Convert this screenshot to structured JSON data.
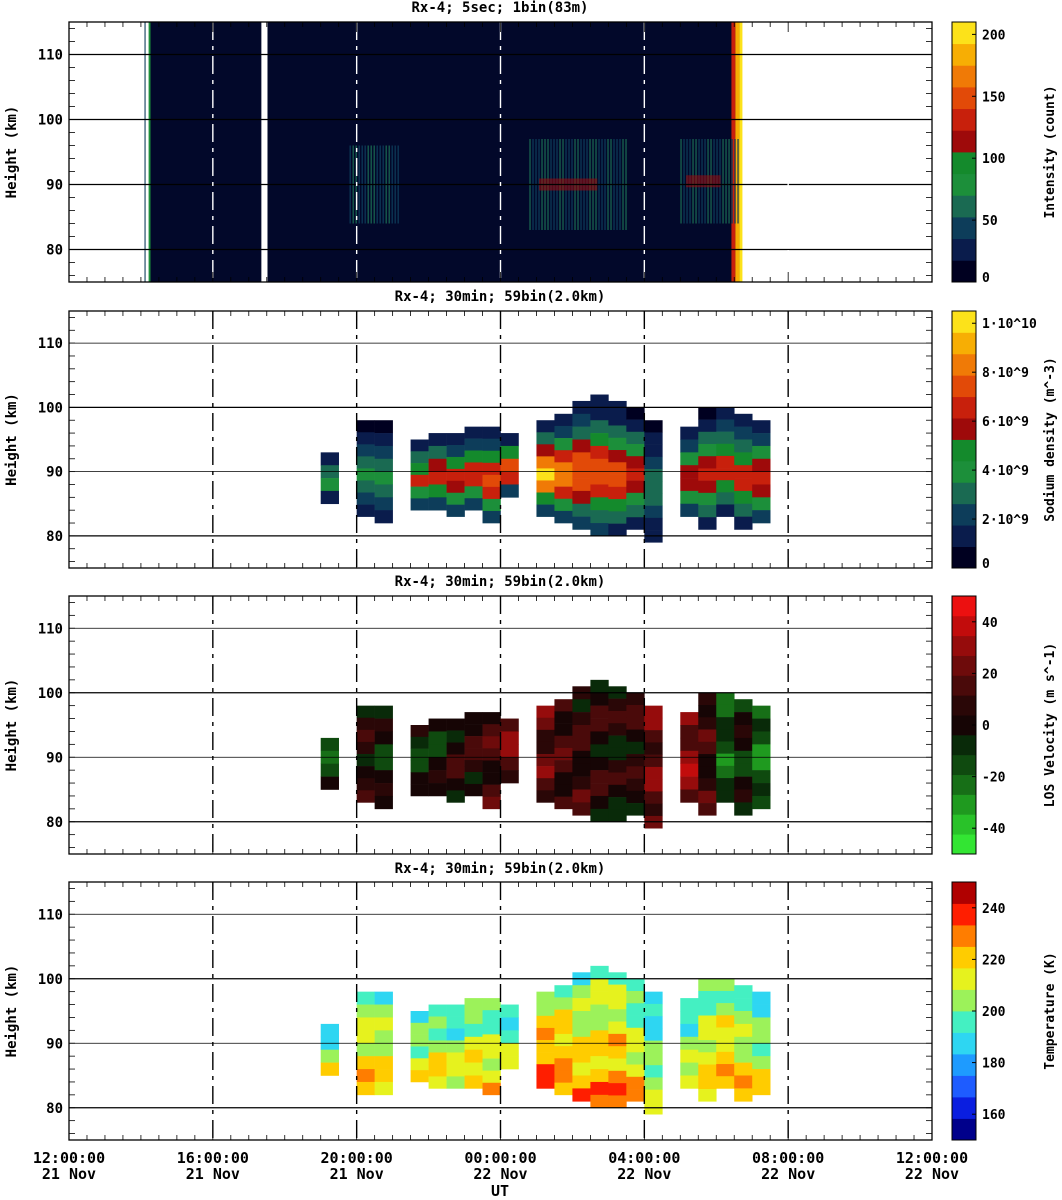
{
  "figure": {
    "x_axis_label": "UT",
    "x_ticks": [
      {
        "time": "12:00:00",
        "date": "21 Nov"
      },
      {
        "time": "16:00:00",
        "date": "21 Nov"
      },
      {
        "time": "20:00:00",
        "date": "21 Nov"
      },
      {
        "time": "00:00:00",
        "date": "22 Nov"
      },
      {
        "time": "04:00:00",
        "date": "22 Nov"
      },
      {
        "time": "08:00:00",
        "date": "22 Nov"
      },
      {
        "time": "12:00:00",
        "date": "22 Nov"
      }
    ],
    "y_ticks": [
      "80",
      "90",
      "100",
      "110"
    ]
  },
  "chart_data": [
    {
      "type": "heatmap",
      "title": "Rx-4;  5sec; 1bin(83m)",
      "xlabel": "",
      "ylabel": "Height (km)",
      "xlim_hours_since_21Nov_12UT": [
        0,
        24
      ],
      "ylim_km": [
        75,
        115
      ],
      "colorbar": {
        "label": "Intensity (count)",
        "ticks": [
          "200",
          "150",
          "100",
          "50",
          "0"
        ],
        "tick_values": [
          200,
          150,
          100,
          50,
          0
        ],
        "range": [
          0,
          210
        ],
        "colors": [
          "#000020",
          "#0a1c4c",
          "#0d3d5a",
          "#1a6a52",
          "#1c8f3a",
          "#148a2c",
          "#9e0a0a",
          "#c8200c",
          "#e24a08",
          "#f07a06",
          "#f7ae04",
          "#fce21a"
        ]
      },
      "data_gaps_hours": [
        [
          2.13,
          2.17
        ],
        [
          5.35,
          5.52
        ]
      ],
      "data_extent_hours": [
        2.1,
        18.7
      ],
      "features": [
        {
          "hours": [
            7.8,
            9.2
          ],
          "height_km": [
            84,
            96
          ],
          "level": "medium"
        },
        {
          "hours": [
            12.8,
            15.5
          ],
          "height_km": [
            83,
            97
          ],
          "level": "high"
        },
        {
          "hours": [
            17.0,
            18.6
          ],
          "height_km": [
            84,
            97
          ],
          "level": "high"
        }
      ]
    },
    {
      "type": "heatmap",
      "title": "Rx-4; 30min; 59bin(2.0km)",
      "ylabel": "Height (km)",
      "ylim_km": [
        75,
        115
      ],
      "colorbar": {
        "label": "Sodium density (m^-3)",
        "ticks": [
          "1·10^10",
          "8·10^9",
          "6·10^9",
          "4·10^9",
          "2·10^9",
          "0"
        ],
        "tick_values": [
          10000000000.0,
          8000000000.0,
          6000000000.0,
          4000000000.0,
          2000000000.0,
          0
        ],
        "range": [
          0,
          10500000000.0
        ],
        "colors": [
          "#000020",
          "#0a1c4c",
          "#0d3d5a",
          "#1a6a52",
          "#1c8f3a",
          "#148a2c",
          "#9e0a0a",
          "#c8200c",
          "#e24a08",
          "#f07a06",
          "#f7ae04",
          "#fce21a"
        ]
      },
      "columns": [
        {
          "hours": [
            7.0,
            7.5
          ],
          "height_km": [
            85,
            93
          ],
          "level": 0.33
        },
        {
          "hours": [
            8.0,
            8.5
          ],
          "height_km": [
            83,
            98
          ],
          "level": 0.3
        },
        {
          "hours": [
            8.5,
            9.0
          ],
          "height_km": [
            82,
            98
          ],
          "level": 0.3
        },
        {
          "hours": [
            9.5,
            10.0
          ],
          "height_km": [
            84,
            95
          ],
          "level": 0.55
        },
        {
          "hours": [
            10.0,
            10.5
          ],
          "height_km": [
            84,
            96
          ],
          "level": 0.62
        },
        {
          "hours": [
            10.5,
            11.0
          ],
          "height_km": [
            83,
            96
          ],
          "level": 0.58
        },
        {
          "hours": [
            11.0,
            11.5
          ],
          "height_km": [
            84,
            97
          ],
          "level": 0.6
        },
        {
          "hours": [
            11.5,
            12.0
          ],
          "height_km": [
            82,
            97
          ],
          "level": 0.7
        },
        {
          "hours": [
            12.0,
            12.5
          ],
          "height_km": [
            86,
            96
          ],
          "level": 0.72
        },
        {
          "hours": [
            13.0,
            13.5
          ],
          "height_km": [
            83,
            98
          ],
          "level": 0.9
        },
        {
          "hours": [
            13.5,
            14.0
          ],
          "height_km": [
            82,
            99
          ],
          "level": 0.75
        },
        {
          "hours": [
            14.0,
            14.5
          ],
          "height_km": [
            81,
            101
          ],
          "level": 0.7
        },
        {
          "hours": [
            14.5,
            15.0
          ],
          "height_km": [
            80,
            102
          ],
          "level": 0.7
        },
        {
          "hours": [
            15.0,
            15.5
          ],
          "height_km": [
            80,
            101
          ],
          "level": 0.65
        },
        {
          "hours": [
            15.5,
            16.0
          ],
          "height_km": [
            81,
            100
          ],
          "level": 0.55
        },
        {
          "hours": [
            16.0,
            16.5
          ],
          "height_km": [
            79,
            98
          ],
          "level": 0.25
        },
        {
          "hours": [
            17.0,
            17.5
          ],
          "height_km": [
            83,
            97
          ],
          "level": 0.55
        },
        {
          "hours": [
            17.5,
            18.0
          ],
          "height_km": [
            81,
            100
          ],
          "level": 0.55
        },
        {
          "hours": [
            18.0,
            18.5
          ],
          "height_km": [
            83,
            100
          ],
          "level": 0.6
        },
        {
          "hours": [
            18.5,
            19.0
          ],
          "height_km": [
            81,
            99
          ],
          "level": 0.6
        },
        {
          "hours": [
            19.0,
            19.5
          ],
          "height_km": [
            82,
            98
          ],
          "level": 0.6
        }
      ]
    },
    {
      "type": "heatmap",
      "title": "Rx-4; 30min; 59bin(2.0km)",
      "ylabel": "Height (km)",
      "ylim_km": [
        75,
        115
      ],
      "colorbar": {
        "label": "LOS Velocity (m s^-1)",
        "ticks": [
          "40",
          "20",
          "0",
          "-20",
          "-40"
        ],
        "tick_values": [
          40,
          20,
          0,
          -20,
          -40
        ],
        "range": [
          -50,
          50
        ],
        "colors": [
          "#33e533",
          "#29c229",
          "#1f9a1f",
          "#176f17",
          "#0f4a0f",
          "#092a09",
          "#160505",
          "#2a0707",
          "#4a0a0a",
          "#6e0b0b",
          "#960c0c",
          "#c20c0c",
          "#ec1010"
        ]
      },
      "columns": [
        {
          "hours": [
            7.0,
            7.5
          ],
          "height_km": [
            85,
            93
          ],
          "value": -10
        },
        {
          "hours": [
            8.0,
            8.5
          ],
          "height_km": [
            83,
            98
          ],
          "value": 5
        },
        {
          "hours": [
            8.5,
            9.0
          ],
          "height_km": [
            82,
            98
          ],
          "value": -5
        },
        {
          "hours": [
            9.5,
            10.0
          ],
          "height_km": [
            84,
            95
          ],
          "value": -8
        },
        {
          "hours": [
            10.0,
            10.5
          ],
          "height_km": [
            84,
            96
          ],
          "value": -6
        },
        {
          "hours": [
            10.5,
            11.0
          ],
          "height_km": [
            83,
            96
          ],
          "value": 5
        },
        {
          "hours": [
            11.0,
            11.5
          ],
          "height_km": [
            84,
            97
          ],
          "value": 8
        },
        {
          "hours": [
            11.5,
            12.0
          ],
          "height_km": [
            82,
            97
          ],
          "value": 10
        },
        {
          "hours": [
            12.0,
            12.5
          ],
          "height_km": [
            86,
            96
          ],
          "value": 20
        },
        {
          "hours": [
            13.0,
            13.5
          ],
          "height_km": [
            83,
            98
          ],
          "value": 18
        },
        {
          "hours": [
            13.5,
            14.0
          ],
          "height_km": [
            82,
            99
          ],
          "value": 10
        },
        {
          "hours": [
            14.0,
            14.5
          ],
          "height_km": [
            81,
            101
          ],
          "value": 8
        },
        {
          "hours": [
            14.5,
            15.0
          ],
          "height_km": [
            80,
            102
          ],
          "value": 5
        },
        {
          "hours": [
            15.0,
            15.5
          ],
          "height_km": [
            80,
            101
          ],
          "value": 2
        },
        {
          "hours": [
            15.5,
            16.0
          ],
          "height_km": [
            81,
            100
          ],
          "value": 6
        },
        {
          "hours": [
            16.0,
            16.5
          ],
          "height_km": [
            79,
            98
          ],
          "value": 22
        },
        {
          "hours": [
            17.0,
            17.5
          ],
          "height_km": [
            83,
            97
          ],
          "value": 25
        },
        {
          "hours": [
            17.5,
            18.0
          ],
          "height_km": [
            81,
            100
          ],
          "value": 10
        },
        {
          "hours": [
            18.0,
            18.5
          ],
          "height_km": [
            83,
            100
          ],
          "value": -15
        },
        {
          "hours": [
            18.5,
            19.0
          ],
          "height_km": [
            81,
            99
          ],
          "value": -5
        },
        {
          "hours": [
            19.0,
            19.5
          ],
          "height_km": [
            82,
            98
          ],
          "value": -20
        }
      ]
    },
    {
      "type": "heatmap",
      "title": "Rx-4; 30min; 59bin(2.0km)",
      "xlabel": "UT",
      "ylabel": "Height (km)",
      "ylim_km": [
        75,
        115
      ],
      "colorbar": {
        "label": "Temperature (K)",
        "ticks": [
          "240",
          "220",
          "200",
          "180",
          "160"
        ],
        "tick_values": [
          240,
          220,
          200,
          180,
          160
        ],
        "range": [
          150,
          250
        ],
        "colors": [
          "#00008b",
          "#0a1ee0",
          "#1e5cff",
          "#1e9bff",
          "#2ed6f2",
          "#44f0c2",
          "#9cf25a",
          "#e6f21e",
          "#ffcc00",
          "#ff7d00",
          "#ff1e00",
          "#b00000"
        ]
      },
      "columns": [
        {
          "hours": [
            7.0,
            7.5
          ],
          "height_km": [
            85,
            93
          ],
          "value": 198
        },
        {
          "hours": [
            8.0,
            8.5
          ],
          "height_km": [
            82,
            98
          ],
          "value": 210
        },
        {
          "hours": [
            8.5,
            9.0
          ],
          "height_km": [
            82,
            98
          ],
          "value": 205
        },
        {
          "hours": [
            9.5,
            10.0
          ],
          "height_km": [
            84,
            95
          ],
          "value": 200
        },
        {
          "hours": [
            10.0,
            10.5
          ],
          "height_km": [
            83,
            96
          ],
          "value": 205
        },
        {
          "hours": [
            10.5,
            11.0
          ],
          "height_km": [
            83,
            96
          ],
          "value": 200
        },
        {
          "hours": [
            11.0,
            11.5
          ],
          "height_km": [
            83,
            97
          ],
          "value": 208
        },
        {
          "hours": [
            11.5,
            12.0
          ],
          "height_km": [
            82,
            97
          ],
          "value": 205
        },
        {
          "hours": [
            12.0,
            12.5
          ],
          "height_km": [
            86,
            96
          ],
          "value": 200
        },
        {
          "hours": [
            13.0,
            13.5
          ],
          "height_km": [
            83,
            98
          ],
          "value": 220
        },
        {
          "hours": [
            13.5,
            14.0
          ],
          "height_km": [
            82,
            99
          ],
          "value": 215
        },
        {
          "hours": [
            14.0,
            14.5
          ],
          "height_km": [
            81,
            101
          ],
          "value": 210
        },
        {
          "hours": [
            14.5,
            15.0
          ],
          "height_km": [
            80,
            102
          ],
          "value": 212
        },
        {
          "hours": [
            15.0,
            15.5
          ],
          "height_km": [
            80,
            101
          ],
          "value": 215
        },
        {
          "hours": [
            15.5,
            16.0
          ],
          "height_km": [
            81,
            100
          ],
          "value": 205
        },
        {
          "hours": [
            16.0,
            16.5
          ],
          "height_km": [
            79,
            98
          ],
          "value": 195
        },
        {
          "hours": [
            17.0,
            17.5
          ],
          "height_km": [
            83,
            97
          ],
          "value": 200
        },
        {
          "hours": [
            17.5,
            18.0
          ],
          "height_km": [
            81,
            100
          ],
          "value": 205
        },
        {
          "hours": [
            18.0,
            18.5
          ],
          "height_km": [
            83,
            100
          ],
          "value": 210
        },
        {
          "hours": [
            18.5,
            19.0
          ],
          "height_km": [
            81,
            99
          ],
          "value": 208
        },
        {
          "hours": [
            19.0,
            19.5
          ],
          "height_km": [
            82,
            98
          ],
          "value": 200
        }
      ]
    }
  ]
}
